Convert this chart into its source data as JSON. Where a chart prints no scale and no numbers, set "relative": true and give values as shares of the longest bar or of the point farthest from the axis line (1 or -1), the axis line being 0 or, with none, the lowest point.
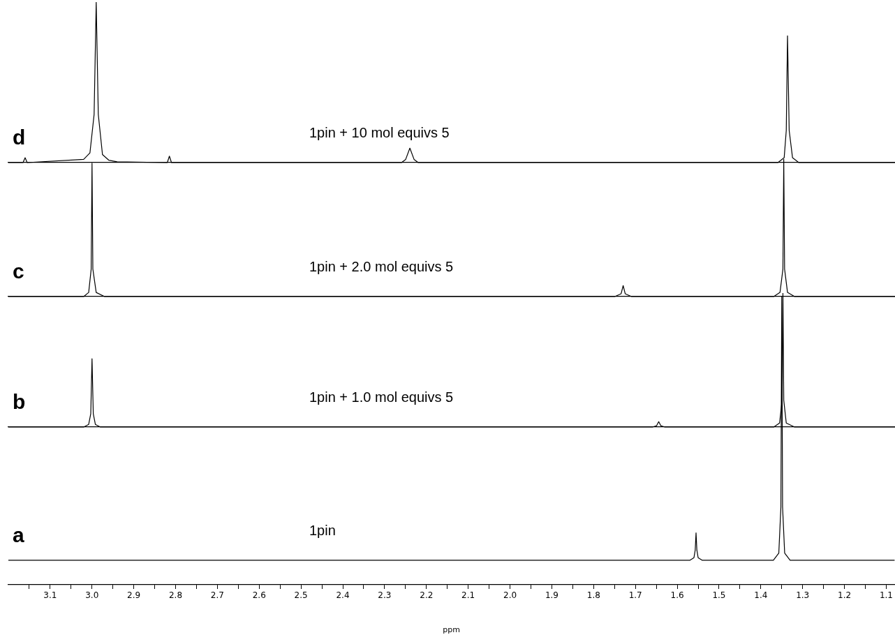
{
  "chart_data": [
    {
      "type": "line",
      "relative": true,
      "tick_labels": false,
      "xlim": [
        3.2,
        1.08
      ],
      "xticks": [
        3.1,
        3,
        2.9,
        2.8,
        2.7,
        2.6,
        2.5,
        2.4,
        2.3,
        2.2,
        2.1,
        2,
        1.9,
        1.8,
        1.7,
        1.6,
        1.5,
        1.4,
        1.3,
        1.2,
        1.1
      ],
      "annotations": [
        "d",
        "1pin + 10 mol equivs 5"
      ],
      "series": [
        {
          "color": "#000000",
          "x": [
            3.2,
            3.165,
            3.16,
            3.155,
            3.02,
            3.005,
            2.995,
            2.99,
            2.985,
            2.975,
            2.96,
            2.94,
            2.82,
            2.815,
            2.81,
            2.26,
            2.25,
            2.24,
            2.23,
            2.22,
            1.36,
            1.345,
            1.34,
            1.337,
            1.333,
            1.325,
            1.31,
            1.08
          ],
          "values": [
            0,
            0,
            0.03,
            0,
            0.02,
            0.06,
            0.3,
            1,
            0.3,
            0.05,
            0.015,
            0.005,
            0,
            0.04,
            0,
            0,
            0.02,
            0.09,
            0.02,
            0,
            0,
            0.03,
            0.2,
            0.79,
            0.2,
            0.03,
            0,
            0
          ]
        }
      ]
    },
    {
      "type": "line",
      "relative": true,
      "tick_labels": false,
      "xlim": [
        3.2,
        1.08
      ],
      "xticks": [
        3.1,
        3,
        2.9,
        2.8,
        2.7,
        2.6,
        2.5,
        2.4,
        2.3,
        2.2,
        2.1,
        2,
        1.9,
        1.8,
        1.7,
        1.6,
        1.5,
        1.4,
        1.3,
        1.2,
        1.1
      ],
      "annotations": [
        "c",
        "1pin + 2.0 mol equivs 5"
      ],
      "series": [
        {
          "color": "#000000",
          "x": [
            3.2,
            3.02,
            3.008,
            3.002,
            3.0,
            2.998,
            2.99,
            2.97,
            1.75,
            1.735,
            1.73,
            1.725,
            1.71,
            1.37,
            1.355,
            1.348,
            1.346,
            1.344,
            1.337,
            1.32,
            1.08
          ],
          "values": [
            0,
            0,
            0.03,
            0.2,
            0.97,
            0.2,
            0.03,
            0,
            0,
            0.02,
            0.08,
            0.02,
            0,
            0,
            0.03,
            0.2,
            1,
            0.2,
            0.03,
            0,
            0
          ]
        }
      ]
    },
    {
      "type": "line",
      "relative": true,
      "tick_labels": false,
      "xlim": [
        3.2,
        1.08
      ],
      "xticks": [
        3.1,
        3,
        2.9,
        2.8,
        2.7,
        2.6,
        2.5,
        2.4,
        2.3,
        2.2,
        2.1,
        2,
        1.9,
        1.8,
        1.7,
        1.6,
        1.5,
        1.4,
        1.3,
        1.2,
        1.1
      ],
      "annotations": [
        "b",
        "1pin + 1.0 mol equivs 5"
      ],
      "series": [
        {
          "color": "#000000",
          "x": [
            3.2,
            3.02,
            3.008,
            3.003,
            3.0,
            2.997,
            2.992,
            2.98,
            1.66,
            1.65,
            1.645,
            1.64,
            1.63,
            1.37,
            1.356,
            1.35,
            1.348,
            1.346,
            1.34,
            1.32,
            1.08
          ],
          "values": [
            0,
            0,
            0.02,
            0.1,
            0.51,
            0.1,
            0.02,
            0,
            0,
            0.01,
            0.04,
            0.01,
            0,
            0,
            0.03,
            0.2,
            1,
            0.2,
            0.03,
            0,
            0
          ]
        }
      ]
    },
    {
      "type": "line",
      "relative": true,
      "tick_labels": "x",
      "xlim": [
        3.2,
        1.08
      ],
      "xlabel": "ppm",
      "annotations": [
        "a",
        "1pin"
      ],
      "xticks": [
        {
          "value": 3.15,
          "label": null
        },
        3.1,
        {
          "value": 3.05,
          "label": null
        },
        {
          "value": 3,
          "label": "3.0"
        },
        {
          "value": 2.95,
          "label": null
        },
        2.9,
        {
          "value": 2.85,
          "label": null
        },
        2.8,
        {
          "value": 2.75,
          "label": null
        },
        2.7,
        {
          "value": 2.65,
          "label": null
        },
        2.6,
        {
          "value": 2.55,
          "label": null
        },
        2.5,
        {
          "value": 2.45,
          "label": null
        },
        2.4,
        {
          "value": 2.35,
          "label": null
        },
        2.3,
        {
          "value": 2.25,
          "label": null
        },
        2.2,
        {
          "value": 2.15,
          "label": null
        },
        2.1,
        {
          "value": 2.05,
          "label": null
        },
        {
          "value": 2,
          "label": "2.0"
        },
        {
          "value": 1.95,
          "label": null
        },
        1.9,
        {
          "value": 1.85,
          "label": null
        },
        1.8,
        {
          "value": 1.75,
          "label": null
        },
        1.7,
        {
          "value": 1.65,
          "label": null
        },
        1.6,
        {
          "value": 1.55,
          "label": null
        },
        1.5,
        {
          "value": 1.45,
          "label": null
        },
        1.4,
        {
          "value": 1.35,
          "label": null
        },
        1.3,
        {
          "value": 1.25,
          "label": null
        },
        1.2,
        {
          "value": 1.15,
          "label": null
        },
        1.1
      ],
      "series": [
        {
          "color": "#000000",
          "x": [
            3.2,
            1.57,
            1.56,
            1.557,
            1.555,
            1.553,
            1.55,
            1.54,
            1.37,
            1.357,
            1.352,
            1.35,
            1.348,
            1.343,
            1.33,
            1.08
          ],
          "values": [
            0.085,
            0.085,
            0.094,
            0.12,
            0.18,
            0.12,
            0.094,
            0.085,
            0.085,
            0.11,
            0.27,
            1,
            0.27,
            0.11,
            0.085,
            0.085
          ]
        }
      ]
    }
  ]
}
